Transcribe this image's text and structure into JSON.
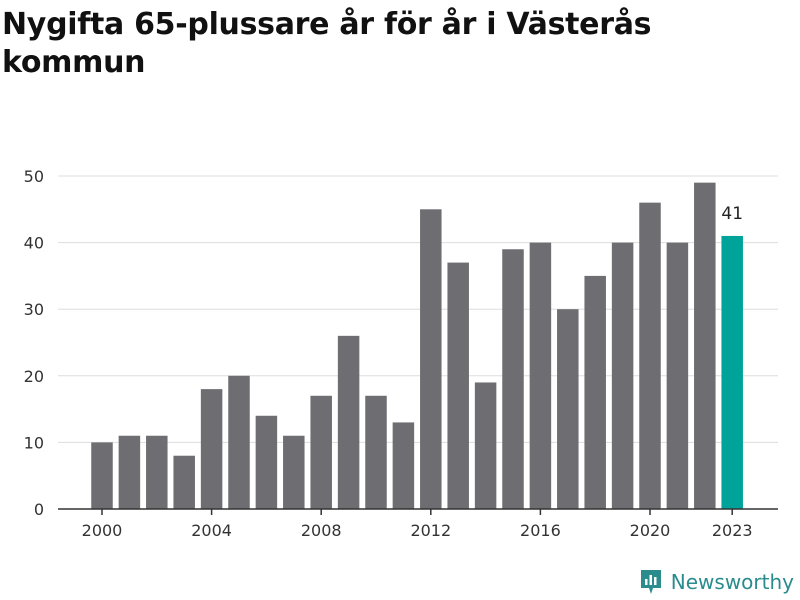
{
  "title": "Nygifta 65-plussare år för år i Västerås kommun",
  "brand": {
    "name": "Newsworthy",
    "icon": "newsworthy-logo-icon"
  },
  "colors": {
    "bar": "#6e6d72",
    "highlight": "#00a39a",
    "grid": "#dddddd",
    "axis": "#333333",
    "brand": "#2a8c8c"
  },
  "chart_data": {
    "type": "bar",
    "title": "Nygifta 65-plussare år för år i Västerås kommun",
    "xlabel": "",
    "ylabel": "",
    "categories": [
      2000,
      2001,
      2002,
      2003,
      2004,
      2005,
      2006,
      2007,
      2008,
      2009,
      2010,
      2011,
      2012,
      2013,
      2014,
      2015,
      2016,
      2017,
      2018,
      2019,
      2020,
      2021,
      2022,
      2023
    ],
    "values": [
      10,
      11,
      11,
      8,
      18,
      20,
      14,
      11,
      17,
      26,
      17,
      13,
      45,
      37,
      19,
      39,
      40,
      30,
      35,
      40,
      46,
      40,
      49,
      41
    ],
    "highlight": {
      "category": 2023,
      "label": "41"
    },
    "xticks": [
      "2000",
      "2004",
      "2008",
      "2012",
      "2016",
      "2020",
      "2023"
    ],
    "yticks": [
      "0",
      "10",
      "20",
      "30",
      "40",
      "50"
    ],
    "ylim": [
      0,
      50
    ],
    "grid": true,
    "legend": "none"
  }
}
